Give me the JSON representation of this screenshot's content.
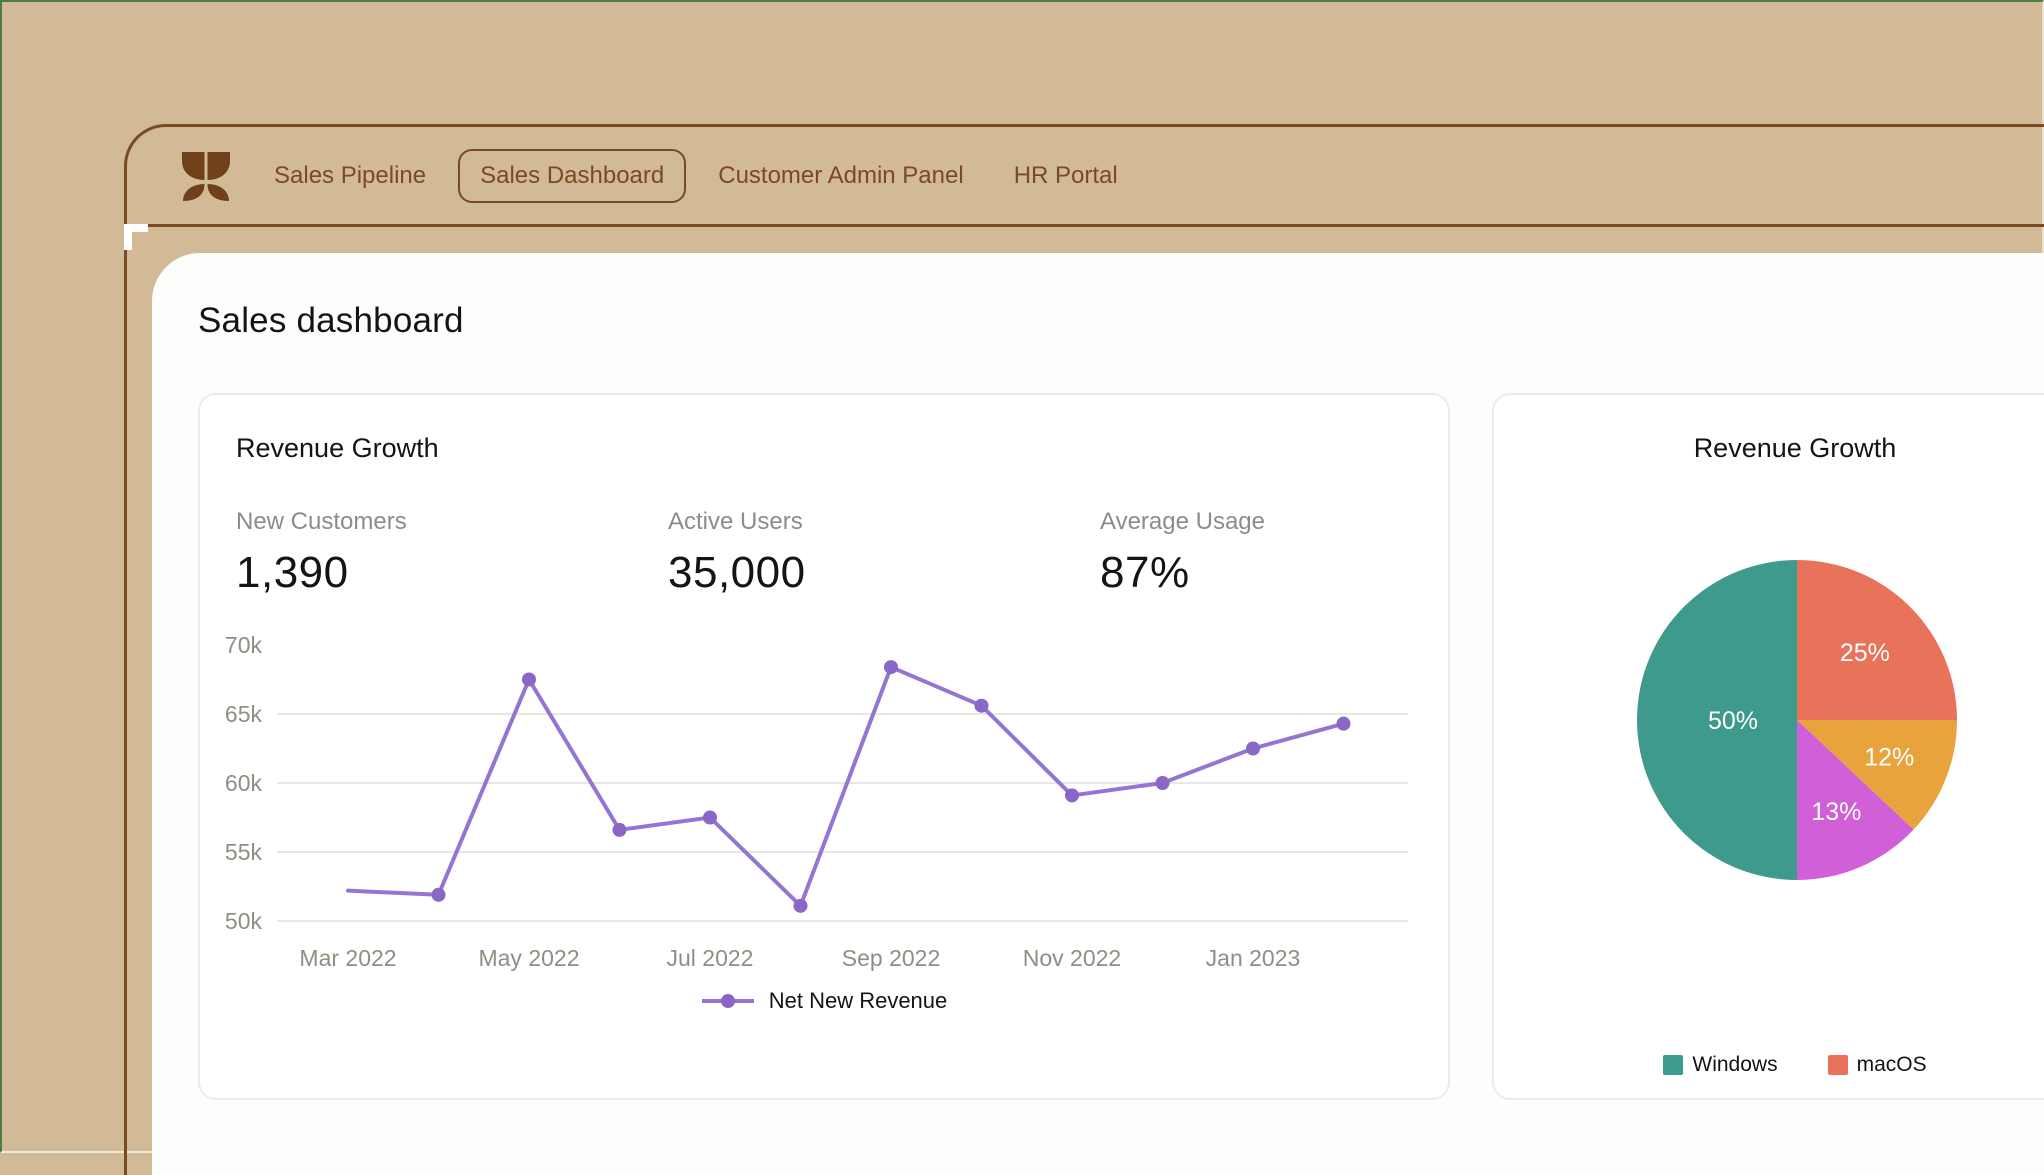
{
  "colors": {
    "background_tan": "#d2ba96",
    "frame_green": "#4e7b4b",
    "accent_brown": "#7b4a23",
    "logo_brown": "#6f4019",
    "panel_white": "#fdfdfc",
    "card_border": "#ebebe9",
    "label_gray": "#8c8c8a",
    "axis_gray": "#908e83",
    "line_purple": "#9575d2",
    "dot_purple": "#8a66c6"
  },
  "navbar": {
    "logo": "tulip-logo",
    "tabs": [
      {
        "label": "Sales Pipeline",
        "active": false
      },
      {
        "label": "Sales Dashboard",
        "active": true
      },
      {
        "label": "Customer Admin Panel",
        "active": false
      },
      {
        "label": "HR Portal",
        "active": false
      }
    ]
  },
  "page": {
    "title": "Sales dashboard"
  },
  "line_card": {
    "title": "Revenue Growth",
    "stats": [
      {
        "label": "New Customers",
        "value": "1,390"
      },
      {
        "label": "Active Users",
        "value": "35,000"
      },
      {
        "label": "Average Usage",
        "value": "87%"
      }
    ],
    "legend_label": "Net New Revenue"
  },
  "pie_card": {
    "title": "Revenue Growth"
  },
  "chart_data": [
    {
      "type": "line",
      "title": "Revenue Growth",
      "x": [
        "Mar 2022",
        "Apr 2022",
        "May 2022",
        "Jun 2022",
        "Jul 2022",
        "Aug 2022",
        "Sep 2022",
        "Oct 2022",
        "Nov 2022",
        "Dec 2022",
        "Jan 2023",
        "Feb 2023"
      ],
      "series": [
        {
          "name": "Net New Revenue",
          "color": "#9575d2",
          "dot_color": "#8a66c6",
          "values": [
            52200,
            51900,
            67500,
            56600,
            57500,
            51100,
            68400,
            65600,
            59100,
            60000,
            62500,
            64300
          ]
        }
      ],
      "ylim": [
        50000,
        70000
      ],
      "ytick_labels": [
        "50k",
        "55k",
        "60k",
        "65k",
        "70k"
      ],
      "gridline_values": [
        50000,
        55000,
        60000,
        65000
      ],
      "xtick_labels": [
        "Mar 2022",
        "May 2022",
        "Jul 2022",
        "Sep 2022",
        "Nov 2022",
        "Jan 2023"
      ],
      "legend_position": "bottom"
    },
    {
      "type": "pie",
      "title": "Revenue Growth",
      "slices": [
        {
          "label": "macOS",
          "value": 25,
          "text": "25%",
          "color": "#e8735a",
          "label_r": 0.6
        },
        {
          "label": "",
          "value": 12,
          "text": "12%",
          "color": "#e9a33d",
          "label_r": 0.62
        },
        {
          "label": "",
          "value": 13,
          "text": "13%",
          "color": "#d15fd8",
          "label_r": 0.62
        },
        {
          "label": "Windows",
          "value": 50,
          "text": "50%",
          "color": "#3d9a8d",
          "label_r": 0.4
        }
      ],
      "legend": [
        {
          "label": "Windows",
          "color": "#3d9a8d"
        },
        {
          "label": "macOS",
          "color": "#e8735a"
        }
      ],
      "legend_position": "bottom"
    }
  ]
}
